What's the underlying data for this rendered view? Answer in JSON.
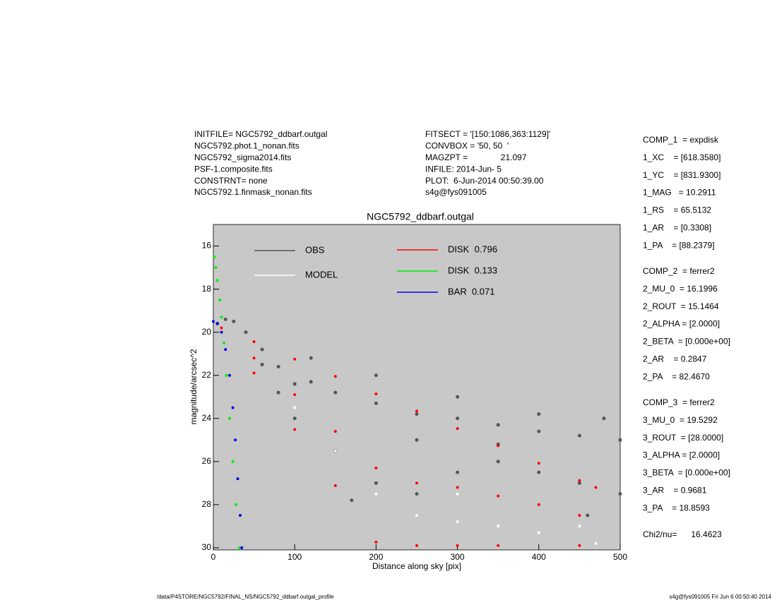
{
  "header": {
    "left": [
      "INITFILE= NGC5792_ddbarf.outgal",
      "NGC5792.phot.1_nonan.fits",
      "NGC5792_sigma2014.fits",
      "PSF-1.composite.fits",
      "CONSTRNT= none",
      "NGC5792.1.finmask_nonan.fits"
    ],
    "middle": [
      "FITSECT = '[150:1086,363:1129]'",
      "CONVBOX = '50, 50  '",
      "MAGZPT =              21.097",
      "INFILE: 2014-Jun- 5",
      "PLOT:  6-Jun-2014 00:50:39.00",
      "s4g@fys091005"
    ]
  },
  "params": {
    "components": [
      [
        "COMP_1  = expdisk",
        "1_XC    = [618.3580]",
        "1_YC    = [831.9300]",
        "1_MAG   = 10.2911",
        "1_RS    = 65.5132",
        "1_AR    = [0.3308]",
        "1_PA    = [88.2379]"
      ],
      [
        "COMP_2  = ferrer2",
        "2_MU_0  = 16.1996",
        "2_ROUT  = 15.1464",
        "2_ALPHA = [2.0000]",
        "2_BETA  = [0.000e+00]",
        "2_AR    = 0.2847",
        "2_PA    = 82.4670"
      ],
      [
        "COMP_3  = ferrer2",
        "3_MU_0  = 19.5292",
        "3_ROUT  = [28.0000]",
        "3_ALPHA = [2.0000]",
        "3_BETA  = [0.000e+00]",
        "3_AR    = 0.9681",
        "3_PA    = 18.8593"
      ]
    ],
    "chi2": "Chi2/nu=      16.4623"
  },
  "footer": {
    "left": "/data/P4STORE/NGC5792/FINAL_NS/NGC5792_ddbarf.outgal_profile",
    "right": "s4g@fys091005  Fri Jun  6 00:50:40 2014"
  },
  "chart_data": {
    "type": "scatter",
    "title": "NGC5792_ddbarf.outgal",
    "x_label": "Distance along sky [pix]",
    "y_label": "magnitude/arcsec^2",
    "xlim": [
      0,
      500
    ],
    "ylim": [
      30.1,
      15.0
    ],
    "xticks": [
      0,
      100,
      200,
      300,
      400,
      500
    ],
    "yticks": [
      16,
      18,
      20,
      22,
      24,
      26,
      28,
      30
    ],
    "plot_background": "#c8c8c8",
    "series": [
      {
        "name": "OBS",
        "color": "#555555",
        "x": [
          5,
          15,
          25,
          40,
          60,
          80,
          100,
          120,
          150,
          200,
          250,
          300,
          350,
          400,
          450,
          500,
          100,
          150,
          200,
          250,
          300,
          350,
          400,
          450,
          500,
          120,
          200,
          300,
          400,
          480,
          460,
          250,
          350,
          170,
          60,
          80
        ],
        "y": [
          19.6,
          19.4,
          19.5,
          20.0,
          20.8,
          21.6,
          22.4,
          22.3,
          22.8,
          23.3,
          23.8,
          24.0,
          24.3,
          24.6,
          24.8,
          25.0,
          24.0,
          25.5,
          27.0,
          27.5,
          26.5,
          26.0,
          26.5,
          27.0,
          27.5,
          21.2,
          22.0,
          23.0,
          23.8,
          24.0,
          28.5,
          25.0,
          25.2,
          27.8,
          21.5,
          22.8
        ]
      },
      {
        "name": "MODEL",
        "color": "#ffffff",
        "x": [
          100,
          150,
          200,
          250,
          300,
          350,
          400,
          450,
          470,
          300
        ],
        "y": [
          23.5,
          25.5,
          27.5,
          28.5,
          28.8,
          29.0,
          29.3,
          29.0,
          29.8,
          27.5
        ]
      },
      {
        "name": "DISK  0.796",
        "color": "#ff0000",
        "x": [
          10,
          50,
          50,
          50,
          100,
          100,
          100,
          150,
          150,
          150,
          200,
          200,
          200,
          250,
          250,
          250,
          300,
          300,
          300,
          350,
          350,
          350,
          400,
          400,
          450,
          450,
          450,
          470
        ],
        "y": [
          19.8,
          20.44,
          21.2,
          21.89,
          21.25,
          22.9,
          24.51,
          22.05,
          24.6,
          27.12,
          22.86,
          26.3,
          29.74,
          23.66,
          27.0,
          29.9,
          24.47,
          27.2,
          29.9,
          25.27,
          27.6,
          29.9,
          26.08,
          28.0,
          26.88,
          28.5,
          29.9,
          27.2
        ]
      },
      {
        "name": "DISK  0.133",
        "color": "#00ee00",
        "x": [
          1,
          3,
          5,
          8,
          10,
          13,
          16,
          20,
          24,
          28,
          32
        ],
        "y": [
          16.5,
          17,
          17.6,
          18.5,
          19.3,
          20.5,
          22,
          24,
          26,
          28,
          30
        ]
      },
      {
        "name": "BAR  0.071",
        "color": "#0000ee",
        "x": [
          0,
          5,
          10,
          15,
          20,
          24,
          27,
          30,
          33,
          35
        ],
        "y": [
          19.5,
          19.6,
          20,
          20.8,
          22,
          23.5,
          25,
          26.8,
          28.5,
          30
        ]
      }
    ]
  }
}
